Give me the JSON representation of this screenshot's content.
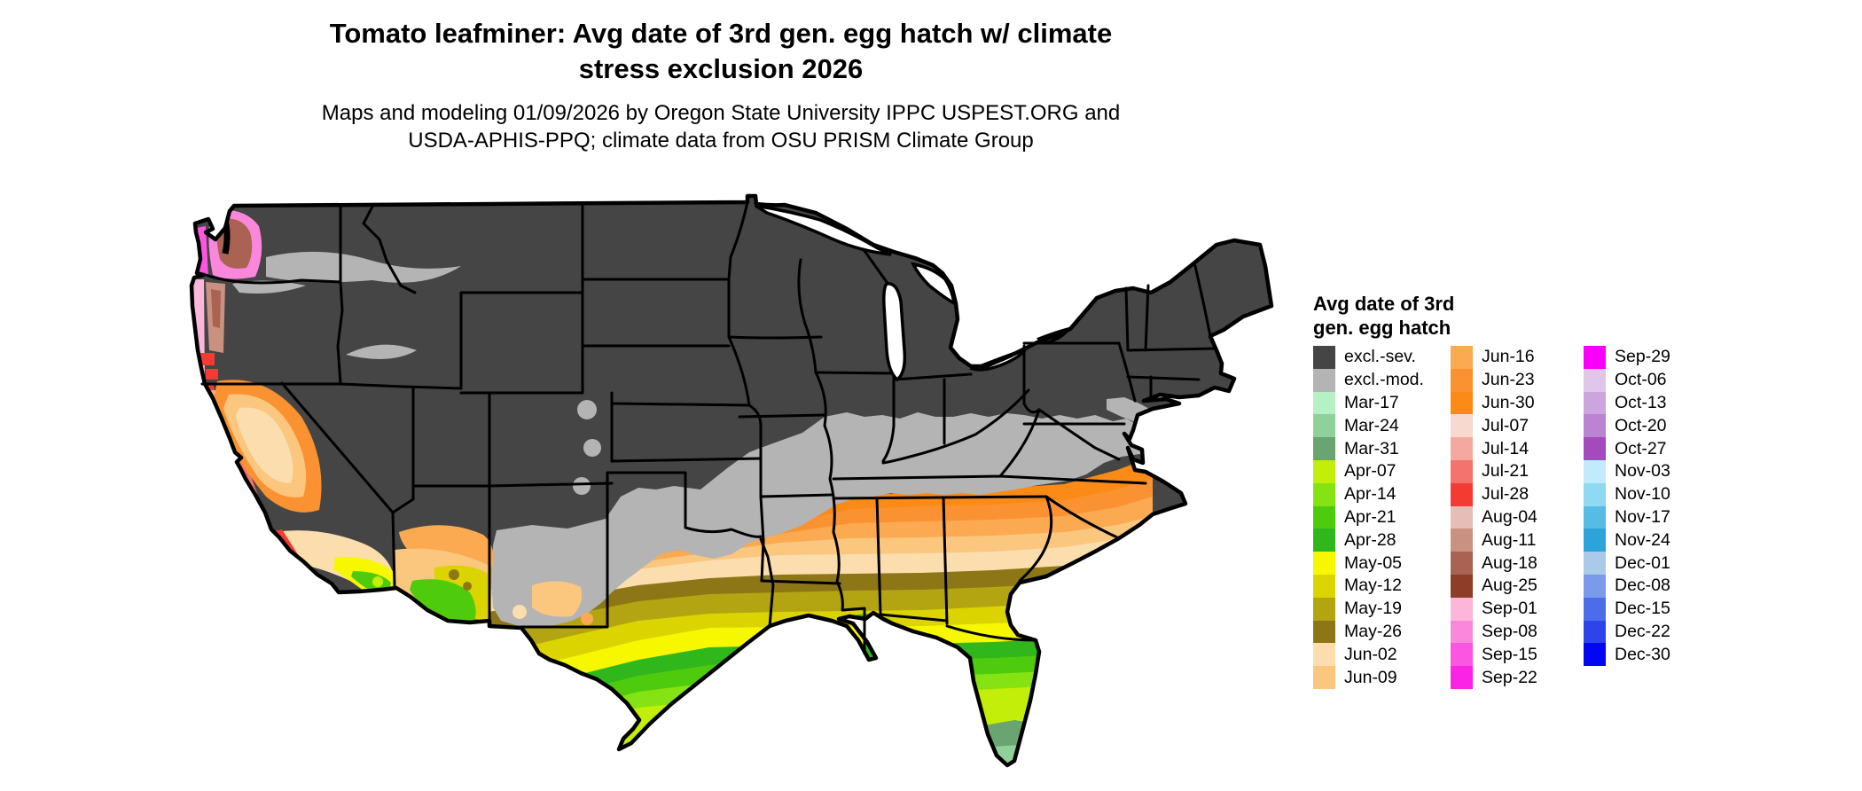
{
  "title": {
    "line1": "Tomato leafminer: Avg date of 3rd gen. egg hatch w/ climate",
    "line2": "stress exclusion 2026"
  },
  "subtitle": {
    "line1": "Maps and modeling 01/09/2026 by Oregon State University IPPC USPEST.ORG and",
    "line2": "USDA-APHIS-PPQ; climate data from OSU PRISM Climate Group"
  },
  "legend": {
    "title_line1": "Avg date of 3rd",
    "title_line2": "gen. egg hatch",
    "columns": [
      [
        {
          "label": "excl.-sev.",
          "color": "#454545"
        },
        {
          "label": "excl.-mod.",
          "color": "#b4b4b4"
        },
        {
          "label": "Mar-17",
          "color": "#b5f1c4"
        },
        {
          "label": "Mar-24",
          "color": "#8fd09b"
        },
        {
          "label": "Mar-31",
          "color": "#69a471"
        },
        {
          "label": "Apr-07",
          "color": "#c3ee09"
        },
        {
          "label": "Apr-14",
          "color": "#86e313"
        },
        {
          "label": "Apr-21",
          "color": "#4fcb0d"
        },
        {
          "label": "Apr-28",
          "color": "#2fb71c"
        },
        {
          "label": "May-05",
          "color": "#f7f700"
        },
        {
          "label": "May-12",
          "color": "#dcd400"
        },
        {
          "label": "May-19",
          "color": "#b3a512"
        },
        {
          "label": "May-26",
          "color": "#8d7616"
        },
        {
          "label": "Jun-02",
          "color": "#fbddae"
        },
        {
          "label": "Jun-09",
          "color": "#fbc67e"
        }
      ],
      [
        {
          "label": "Jun-16",
          "color": "#fbaa52"
        },
        {
          "label": "Jun-23",
          "color": "#fb9232"
        },
        {
          "label": "Jun-30",
          "color": "#fb8b16"
        },
        {
          "label": "Jul-07",
          "color": "#f7d9d0"
        },
        {
          "label": "Jul-14",
          "color": "#f5a89e"
        },
        {
          "label": "Jul-21",
          "color": "#f4736c"
        },
        {
          "label": "Jul-28",
          "color": "#f43b32"
        },
        {
          "label": "Aug-04",
          "color": "#e6beb5"
        },
        {
          "label": "Aug-11",
          "color": "#c9917f"
        },
        {
          "label": "Aug-18",
          "color": "#aa6252"
        },
        {
          "label": "Aug-25",
          "color": "#8e3d28"
        },
        {
          "label": "Sep-01",
          "color": "#fbb6d9"
        },
        {
          "label": "Sep-08",
          "color": "#fb87dd"
        },
        {
          "label": "Sep-15",
          "color": "#fb55e1"
        },
        {
          "label": "Sep-22",
          "color": "#fb23e5"
        }
      ],
      [
        {
          "label": "Sep-29",
          "color": "#f900fa"
        },
        {
          "label": "Oct-06",
          "color": "#dfc6ea"
        },
        {
          "label": "Oct-13",
          "color": "#cda5de"
        },
        {
          "label": "Oct-20",
          "color": "#bb83d2"
        },
        {
          "label": "Oct-27",
          "color": "#a44abc"
        },
        {
          "label": "Nov-03",
          "color": "#c1eafa"
        },
        {
          "label": "Nov-10",
          "color": "#90d9f2"
        },
        {
          "label": "Nov-17",
          "color": "#56bce4"
        },
        {
          "label": "Nov-24",
          "color": "#2ca4d9"
        },
        {
          "label": "Dec-01",
          "color": "#a9cae9"
        },
        {
          "label": "Dec-08",
          "color": "#7b9bea"
        },
        {
          "label": "Dec-15",
          "color": "#4c6dea"
        },
        {
          "label": "Dec-22",
          "color": "#2c44ea"
        },
        {
          "label": "Dec-30",
          "color": "#0307f1"
        }
      ]
    ]
  },
  "map": {
    "region": "Continental United States",
    "water_color": "#ffffff",
    "border_color": "#000000"
  }
}
